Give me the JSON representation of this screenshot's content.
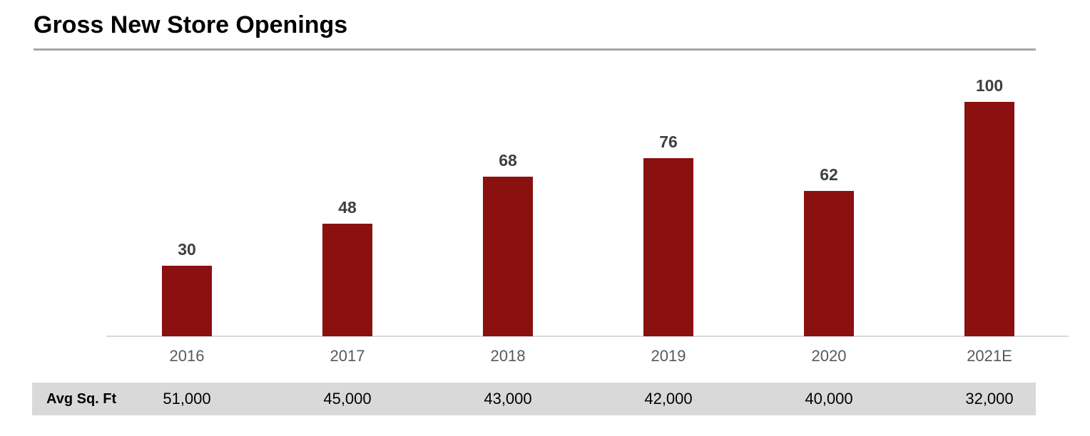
{
  "title": "Gross New Store Openings",
  "chart_data": {
    "type": "bar",
    "title": "Gross New Store Openings",
    "categories": [
      "2016",
      "2017",
      "2018",
      "2019",
      "2020",
      "2021E"
    ],
    "values": [
      30,
      48,
      68,
      76,
      62,
      100
    ],
    "data_labels": [
      "30",
      "48",
      "68",
      "76",
      "62",
      "100"
    ],
    "xlabel": "",
    "ylabel": "",
    "ylim": [
      0,
      110
    ],
    "grid": false,
    "legend": "none",
    "bar_color": "#8b1010"
  },
  "table": {
    "row_header": "Avg Sq. Ft",
    "values": [
      "51,000",
      "45,000",
      "43,000",
      "42,000",
      "40,000",
      "32,000"
    ]
  },
  "colors": {
    "bar": "#8b1010",
    "value_label": "#3f3f3f",
    "year_label": "#595959",
    "axis_line": "#d9d9d9",
    "band_background": "#d9d9d9",
    "title_rule": "#a6a6a6",
    "title_text": "#000000"
  }
}
